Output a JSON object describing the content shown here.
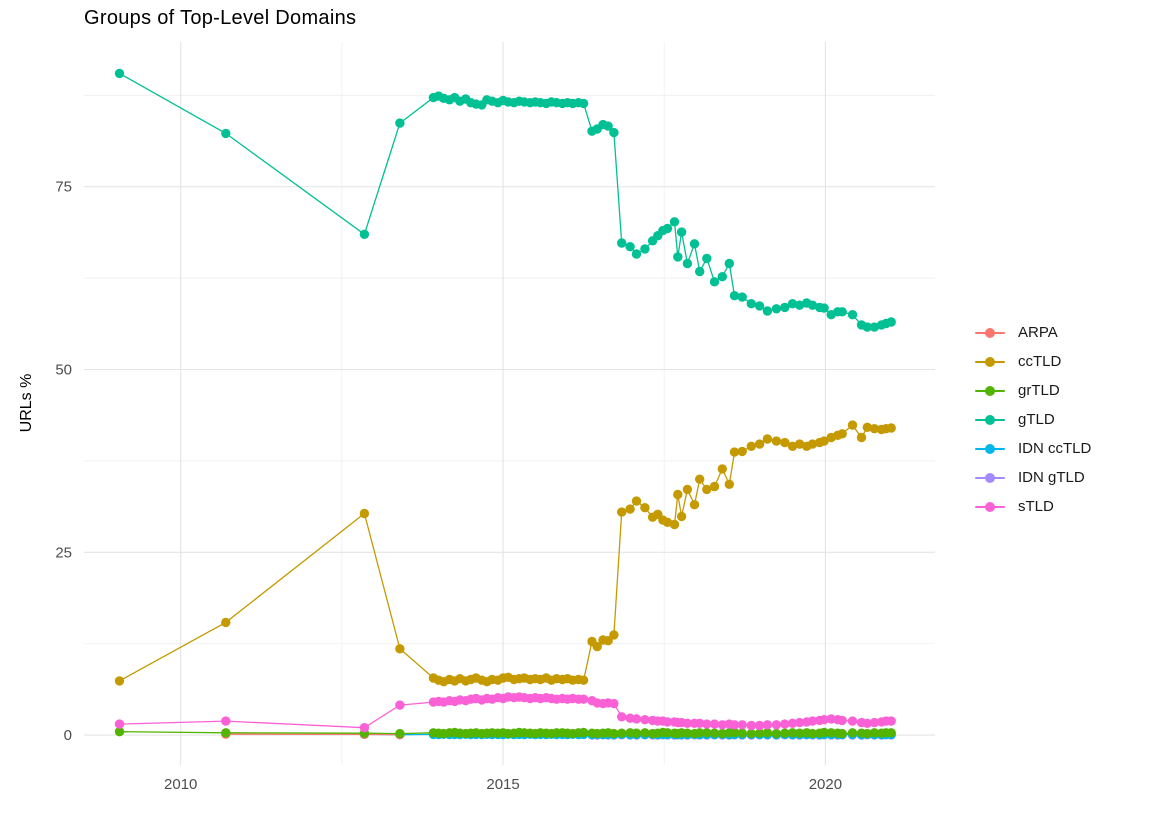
{
  "chart_data": {
    "type": "line",
    "title": "Groups of Top-Level Domains",
    "xlabel": "",
    "ylabel": "URLs %",
    "legend_position": "right",
    "grid": true,
    "axes": {
      "x_range": [
        2008.5,
        2021.7
      ],
      "y_range": [
        -4.1,
        94.8
      ],
      "x_ticks": [
        {
          "value": 2010,
          "label": "2010"
        },
        {
          "value": 2015,
          "label": "2015"
        },
        {
          "value": 2020,
          "label": "2020"
        }
      ],
      "x_minor": [
        2012.5,
        2017.5
      ],
      "y_ticks": [
        {
          "value": 0,
          "label": "0"
        },
        {
          "value": 25,
          "label": "25"
        },
        {
          "value": 50,
          "label": "50"
        },
        {
          "value": 75,
          "label": "75"
        }
      ],
      "y_minor": [
        12.5,
        37.5,
        62.5,
        87.5
      ]
    },
    "style": {
      "grid_major_color": "#e4e4e4",
      "grid_minor_color": "#f0f0f0",
      "axis_text_color": "#4d4d4d",
      "title_color": "#000000"
    },
    "series": [
      {
        "name": "ARPA",
        "color": "#F8766D",
        "x": [
          2010.7,
          2012.85,
          2013.4
        ],
        "y": [
          0.12,
          0.1,
          0.06
        ]
      },
      {
        "name": "ccTLD",
        "color": "#C49A00",
        "x": [
          2009.05,
          2010.7,
          2012.85,
          2013.4,
          2013.92,
          2014.0,
          2014.08,
          2014.17,
          2014.25,
          2014.33,
          2014.42,
          2014.5,
          2014.58,
          2014.67,
          2014.75,
          2014.83,
          2014.92,
          2015.0,
          2015.08,
          2015.17,
          2015.25,
          2015.33,
          2015.42,
          2015.5,
          2015.58,
          2015.67,
          2015.75,
          2015.83,
          2015.92,
          2016.0,
          2016.08,
          2016.17,
          2016.25,
          2016.38,
          2016.46,
          2016.55,
          2016.63,
          2016.72,
          2016.84,
          2016.97,
          2017.07,
          2017.2,
          2017.32,
          2017.4,
          2017.48,
          2017.55,
          2017.66,
          2017.71,
          2017.77,
          2017.86,
          2017.97,
          2018.05,
          2018.16,
          2018.28,
          2018.4,
          2018.51,
          2018.59,
          2018.71,
          2018.85,
          2018.98,
          2019.1,
          2019.24,
          2019.37,
          2019.49,
          2019.6,
          2019.71,
          2019.8,
          2019.91,
          2019.98,
          2020.09,
          2020.19,
          2020.26,
          2020.42,
          2020.56,
          2020.65,
          2020.76,
          2020.87,
          2020.94,
          2021.02
        ],
        "y": [
          7.4,
          15.4,
          30.3,
          11.8,
          7.8,
          7.5,
          7.3,
          7.6,
          7.4,
          7.7,
          7.4,
          7.6,
          7.8,
          7.5,
          7.3,
          7.6,
          7.5,
          7.8,
          7.9,
          7.6,
          7.7,
          7.8,
          7.6,
          7.7,
          7.6,
          7.8,
          7.5,
          7.7,
          7.6,
          7.7,
          7.5,
          7.6,
          7.5,
          12.8,
          12.1,
          13.0,
          12.9,
          13.7,
          30.5,
          30.9,
          32.0,
          31.1,
          29.8,
          30.2,
          29.4,
          29.1,
          28.8,
          32.9,
          29.9,
          33.6,
          31.5,
          35.0,
          33.6,
          34.0,
          36.4,
          34.3,
          38.7,
          38.8,
          39.5,
          39.8,
          40.5,
          40.2,
          40.0,
          39.5,
          39.8,
          39.5,
          39.8,
          40.0,
          40.2,
          40.7,
          41.0,
          41.2,
          42.4,
          40.7,
          42.1,
          41.9,
          41.8,
          41.9,
          42.0
        ]
      },
      {
        "name": "grTLD",
        "color": "#53B400",
        "x": [
          2009.05,
          2010.7,
          2012.85,
          2013.4,
          2013.92,
          2014.0,
          2014.08,
          2014.17,
          2014.25,
          2014.33,
          2014.42,
          2014.5,
          2014.58,
          2014.67,
          2014.75,
          2014.83,
          2014.92,
          2015.0,
          2015.08,
          2015.17,
          2015.25,
          2015.33,
          2015.42,
          2015.5,
          2015.58,
          2015.67,
          2015.75,
          2015.83,
          2015.92,
          2016.0,
          2016.08,
          2016.17,
          2016.25,
          2016.38,
          2016.46,
          2016.55,
          2016.63,
          2016.72,
          2016.84,
          2016.97,
          2017.07,
          2017.2,
          2017.32,
          2017.4,
          2017.48,
          2017.55,
          2017.66,
          2017.71,
          2017.77,
          2017.86,
          2017.97,
          2018.05,
          2018.16,
          2018.28,
          2018.4,
          2018.51,
          2018.59,
          2018.71,
          2018.85,
          2018.98,
          2019.1,
          2019.24,
          2019.37,
          2019.49,
          2019.6,
          2019.71,
          2019.8,
          2019.91,
          2019.98,
          2020.09,
          2020.19,
          2020.26,
          2020.42,
          2020.56,
          2020.65,
          2020.76,
          2020.87,
          2020.94,
          2021.02
        ],
        "y": [
          0.45,
          0.3,
          0.25,
          0.2,
          0.3,
          0.25,
          0.2,
          0.3,
          0.35,
          0.25,
          0.2,
          0.25,
          0.3,
          0.2,
          0.25,
          0.3,
          0.25,
          0.3,
          0.2,
          0.25,
          0.35,
          0.3,
          0.25,
          0.2,
          0.3,
          0.25,
          0.2,
          0.3,
          0.3,
          0.25,
          0.2,
          0.3,
          0.35,
          0.25,
          0.2,
          0.25,
          0.3,
          0.2,
          0.25,
          0.3,
          0.25,
          0.3,
          0.2,
          0.25,
          0.35,
          0.3,
          0.25,
          0.2,
          0.3,
          0.25,
          0.2,
          0.3,
          0.3,
          0.25,
          0.2,
          0.3,
          0.35,
          0.25,
          0.2,
          0.25,
          0.3,
          0.2,
          0.25,
          0.3,
          0.25,
          0.3,
          0.2,
          0.25,
          0.35,
          0.3,
          0.25,
          0.2,
          0.3,
          0.25,
          0.2,
          0.3,
          0.25,
          0.3,
          0.3
        ]
      },
      {
        "name": "gTLD",
        "color": "#00C094",
        "x": [
          2009.05,
          2010.7,
          2012.85,
          2013.4,
          2013.92,
          2014.0,
          2014.08,
          2014.17,
          2014.25,
          2014.33,
          2014.42,
          2014.5,
          2014.58,
          2014.67,
          2014.75,
          2014.83,
          2014.92,
          2015.0,
          2015.08,
          2015.17,
          2015.25,
          2015.33,
          2015.42,
          2015.5,
          2015.58,
          2015.67,
          2015.75,
          2015.83,
          2015.92,
          2016.0,
          2016.08,
          2016.17,
          2016.25,
          2016.38,
          2016.46,
          2016.55,
          2016.63,
          2016.72,
          2016.84,
          2016.97,
          2017.07,
          2017.2,
          2017.32,
          2017.4,
          2017.48,
          2017.55,
          2017.66,
          2017.71,
          2017.77,
          2017.86,
          2017.97,
          2018.05,
          2018.16,
          2018.28,
          2018.4,
          2018.51,
          2018.59,
          2018.71,
          2018.85,
          2018.98,
          2019.1,
          2019.24,
          2019.37,
          2019.49,
          2019.6,
          2019.71,
          2019.8,
          2019.91,
          2019.98,
          2020.09,
          2020.19,
          2020.26,
          2020.42,
          2020.56,
          2020.65,
          2020.76,
          2020.87,
          2020.94,
          2021.02
        ],
        "y": [
          90.5,
          82.3,
          68.5,
          83.7,
          87.2,
          87.4,
          87.1,
          86.9,
          87.2,
          86.7,
          87.0,
          86.5,
          86.3,
          86.2,
          86.9,
          86.7,
          86.5,
          86.8,
          86.6,
          86.5,
          86.7,
          86.6,
          86.5,
          86.6,
          86.5,
          86.4,
          86.6,
          86.5,
          86.4,
          86.5,
          86.4,
          86.5,
          86.4,
          82.6,
          82.9,
          83.5,
          83.3,
          82.4,
          67.3,
          66.8,
          65.8,
          66.5,
          67.6,
          68.3,
          69.0,
          69.3,
          70.2,
          65.4,
          68.8,
          64.5,
          67.2,
          63.4,
          65.2,
          62.0,
          62.7,
          64.5,
          60.1,
          59.9,
          59.0,
          58.7,
          58.0,
          58.3,
          58.5,
          59.0,
          58.8,
          59.1,
          58.8,
          58.5,
          58.4,
          57.5,
          57.9,
          57.9,
          57.5,
          56.1,
          55.8,
          55.8,
          56.1,
          56.3,
          56.5
        ]
      },
      {
        "name": "IDN ccTLD",
        "color": "#00B6EB",
        "x": [
          2012.85,
          2013.4,
          2013.92,
          2014.0,
          2014.08,
          2014.17,
          2014.25,
          2014.33,
          2014.42,
          2014.5,
          2014.58,
          2014.67,
          2014.75,
          2014.83,
          2014.92,
          2015.0,
          2015.08,
          2015.17,
          2015.25,
          2015.33,
          2015.42,
          2015.5,
          2015.58,
          2015.67,
          2015.75,
          2015.83,
          2015.92,
          2016.0,
          2016.08,
          2016.17,
          2016.25,
          2016.38,
          2016.46,
          2016.55,
          2016.63,
          2016.72,
          2016.84,
          2016.97,
          2017.07,
          2017.2,
          2017.32,
          2017.4,
          2017.48,
          2017.55,
          2017.66,
          2017.71,
          2017.77,
          2017.86,
          2017.97,
          2018.05,
          2018.16,
          2018.28,
          2018.4,
          2018.51,
          2018.59,
          2018.71,
          2018.85,
          2018.98,
          2019.1,
          2019.24,
          2019.37,
          2019.49,
          2019.6,
          2019.71,
          2019.8,
          2019.91,
          2019.98,
          2020.09,
          2020.19,
          2020.26,
          2020.42,
          2020.56,
          2020.65,
          2020.76,
          2020.87,
          2020.94,
          2021.02
        ],
        "y": [
          0.1,
          0.05,
          0.08,
          0.06,
          0.1,
          0.07,
          0.08,
          0.06,
          0.1,
          0.07,
          0.08,
          0.06,
          0.1,
          0.07,
          0.08,
          0.06,
          0.1,
          0.07,
          0.08,
          0.06,
          0.1,
          0.07,
          0.08,
          0.06,
          0.1,
          0.07,
          0.08,
          0.06,
          0.1,
          0.07,
          0.08,
          0.06,
          0.1,
          0.07,
          0.08,
          0.06,
          0.1,
          0.07,
          0.08,
          0.06,
          0.1,
          0.07,
          0.08,
          0.06,
          0.1,
          0.07,
          0.08,
          0.06,
          0.1,
          0.07,
          0.08,
          0.06,
          0.1,
          0.07,
          0.08,
          0.06,
          0.1,
          0.07,
          0.08,
          0.06,
          0.1,
          0.07,
          0.08,
          0.06,
          0.1,
          0.07,
          0.08,
          0.06,
          0.1,
          0.07,
          0.08,
          0.06,
          0.1,
          0.07,
          0.08,
          0.06,
          0.08
        ]
      },
      {
        "name": "IDN gTLD",
        "color": "#A58AFF",
        "x": [
          2016.38,
          2016.46,
          2016.55,
          2016.63,
          2016.72,
          2016.84,
          2016.97,
          2017.07,
          2017.2,
          2017.32,
          2017.4,
          2017.48,
          2017.55,
          2017.66,
          2017.71,
          2017.77,
          2017.86,
          2017.97,
          2018.05,
          2018.16,
          2018.28,
          2018.4,
          2018.51,
          2018.59,
          2018.71,
          2018.85,
          2018.98,
          2019.1,
          2019.24,
          2019.37,
          2019.49,
          2019.6,
          2019.71,
          2019.8,
          2019.91,
          2019.98,
          2020.09,
          2020.19,
          2020.26,
          2020.42,
          2020.56,
          2020.65,
          2020.76,
          2020.87,
          2020.94,
          2021.02
        ],
        "y": [
          0.02,
          0.0,
          0.03,
          0.02,
          0.0,
          0.03,
          0.02,
          0.0,
          0.03,
          0.02,
          0.0,
          0.03,
          0.02,
          0.0,
          0.03,
          0.02,
          0.0,
          0.03,
          0.02,
          0.0,
          0.03,
          0.02,
          0.0,
          0.03,
          0.02,
          0.0,
          0.03,
          0.02,
          0.0,
          0.03,
          0.02,
          0.0,
          0.03,
          0.02,
          0.0,
          0.03,
          0.02,
          0.0,
          0.03,
          0.02,
          0.0,
          0.03,
          0.02,
          0.0,
          0.03,
          0.02
        ]
      },
      {
        "name": "sTLD",
        "color": "#FB61D7",
        "x": [
          2009.05,
          2010.7,
          2012.85,
          2013.4,
          2013.92,
          2014.0,
          2014.08,
          2014.17,
          2014.25,
          2014.33,
          2014.42,
          2014.5,
          2014.58,
          2014.67,
          2014.75,
          2014.83,
          2014.92,
          2015.0,
          2015.08,
          2015.17,
          2015.25,
          2015.33,
          2015.42,
          2015.5,
          2015.58,
          2015.67,
          2015.75,
          2015.83,
          2015.92,
          2016.0,
          2016.08,
          2016.17,
          2016.25,
          2016.38,
          2016.46,
          2016.55,
          2016.63,
          2016.72,
          2016.84,
          2016.97,
          2017.07,
          2017.2,
          2017.32,
          2017.4,
          2017.48,
          2017.55,
          2017.66,
          2017.71,
          2017.77,
          2017.86,
          2017.97,
          2018.05,
          2018.16,
          2018.28,
          2018.4,
          2018.51,
          2018.59,
          2018.71,
          2018.85,
          2018.98,
          2019.1,
          2019.24,
          2019.37,
          2019.49,
          2019.6,
          2019.71,
          2019.8,
          2019.91,
          2019.98,
          2020.09,
          2020.19,
          2020.26,
          2020.42,
          2020.56,
          2020.65,
          2020.76,
          2020.87,
          2020.94,
          2021.02
        ],
        "y": [
          1.5,
          1.9,
          1.0,
          4.1,
          4.5,
          4.6,
          4.5,
          4.7,
          4.6,
          4.8,
          4.7,
          4.9,
          5.0,
          4.8,
          5.0,
          4.9,
          5.1,
          5.0,
          5.2,
          5.1,
          5.2,
          5.1,
          5.0,
          5.1,
          5.0,
          5.1,
          5.0,
          4.9,
          5.0,
          4.9,
          5.0,
          4.9,
          4.9,
          4.7,
          4.4,
          4.3,
          4.4,
          4.3,
          2.5,
          2.3,
          2.2,
          2.1,
          2.0,
          1.9,
          1.9,
          1.8,
          1.8,
          1.7,
          1.7,
          1.6,
          1.6,
          1.6,
          1.5,
          1.5,
          1.4,
          1.5,
          1.4,
          1.4,
          1.3,
          1.3,
          1.4,
          1.4,
          1.5,
          1.6,
          1.7,
          1.8,
          1.9,
          2.0,
          2.1,
          2.2,
          2.1,
          2.0,
          1.9,
          1.7,
          1.6,
          1.7,
          1.8,
          1.9,
          1.9
        ]
      }
    ]
  }
}
